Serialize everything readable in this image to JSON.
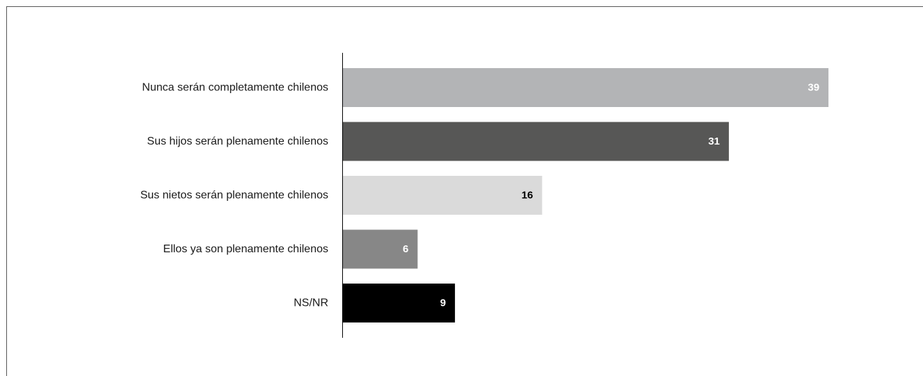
{
  "chart_data": {
    "type": "bar",
    "orientation": "horizontal",
    "title": "",
    "xlabel": "",
    "ylabel": "",
    "categories": [
      "Nunca serán completamente chilenos",
      "Sus hijos serán plenamente chilenos",
      "Sus nietos serán plenamente chilenos",
      "Ellos ya son plenamente chilenos",
      "NS/NR"
    ],
    "values": [
      39,
      31,
      16,
      6,
      9
    ],
    "value_labels": [
      "39",
      "31",
      "16",
      "6",
      "9"
    ],
    "bar_colors": [
      "#b3b4b6",
      "#575756",
      "#dadada",
      "#878787",
      "#000000"
    ],
    "label_colors": [
      "#ffffff",
      "#ffffff",
      "#000000",
      "#ffffff",
      "#ffffff"
    ],
    "xlim": [
      0,
      40
    ],
    "grid": false,
    "legend": "none"
  }
}
